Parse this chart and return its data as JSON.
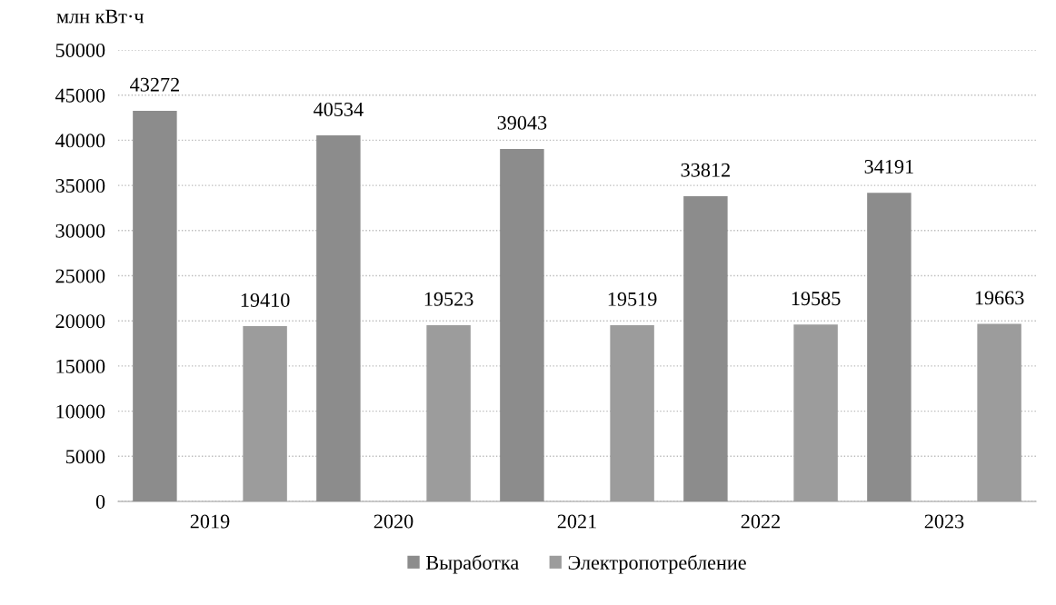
{
  "chart_data": {
    "type": "bar",
    "ylabel": "млн кВт·ч",
    "categories": [
      "2019",
      "2020",
      "2021",
      "2022",
      "2023"
    ],
    "series": [
      {
        "name": "Выработка",
        "color": "#8c8c8c",
        "values": [
          43272,
          40534,
          39043,
          33812,
          34191
        ]
      },
      {
        "name": "Электропотребление",
        "color": "#9c9c9c",
        "values": [
          19410,
          19523,
          19519,
          19585,
          19663
        ]
      }
    ],
    "ylim": [
      0,
      50000
    ],
    "yticks": [
      0,
      5000,
      10000,
      15000,
      20000,
      25000,
      30000,
      35000,
      40000,
      45000,
      50000
    ],
    "grid": "y",
    "legend": "bottom",
    "data_labels": true
  }
}
